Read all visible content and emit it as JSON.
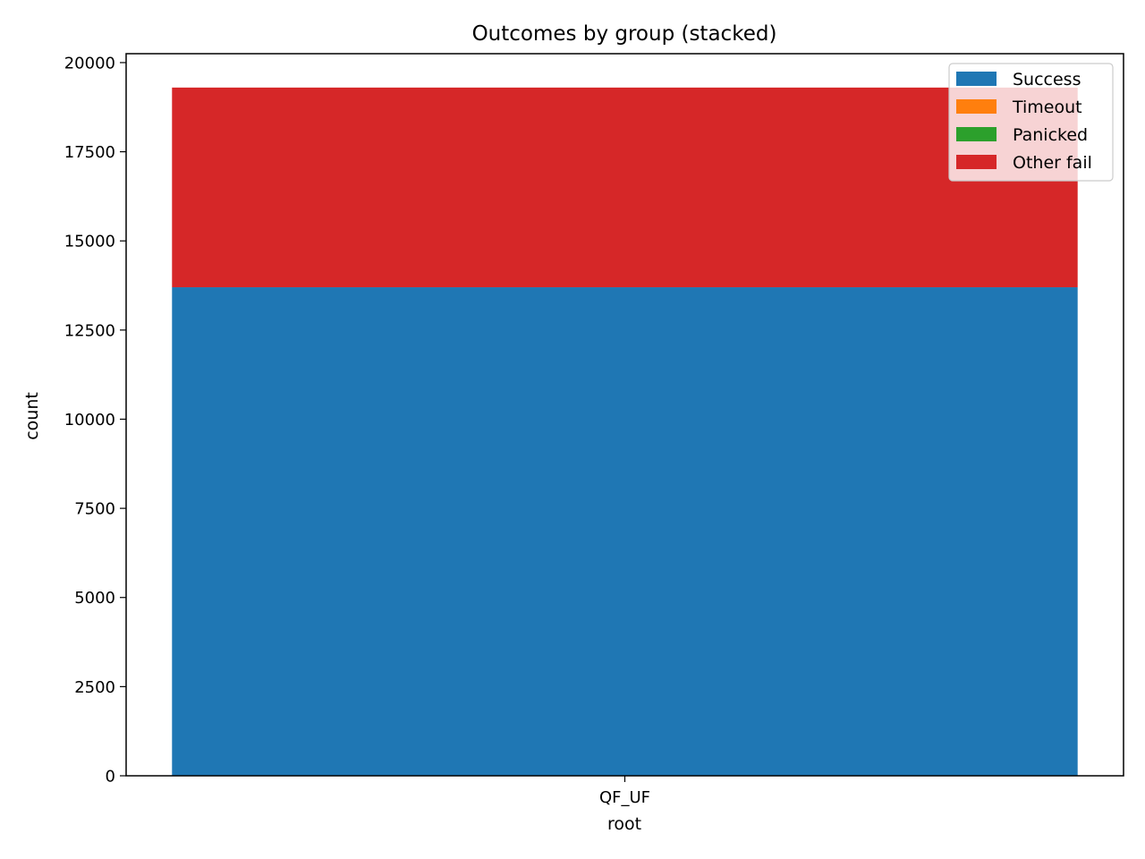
{
  "chart_data": {
    "type": "bar",
    "stacked": true,
    "title": "Outcomes by group (stacked)",
    "xlabel": "root",
    "ylabel": "count",
    "categories": [
      "QF_UF"
    ],
    "ylim": [
      0,
      20250
    ],
    "yticks": [
      0,
      2500,
      5000,
      7500,
      10000,
      12500,
      15000,
      17500,
      20000
    ],
    "grid": false,
    "legend_position": "top-right",
    "series": [
      {
        "name": "Success",
        "color": "#1f77b4",
        "values": [
          13700
        ]
      },
      {
        "name": "Timeout",
        "color": "#ff7f0e",
        "values": [
          0
        ]
      },
      {
        "name": "Panicked",
        "color": "#2ca02c",
        "values": [
          0
        ]
      },
      {
        "name": "Other fail",
        "color": "#d62728",
        "values": [
          5600
        ]
      }
    ]
  }
}
